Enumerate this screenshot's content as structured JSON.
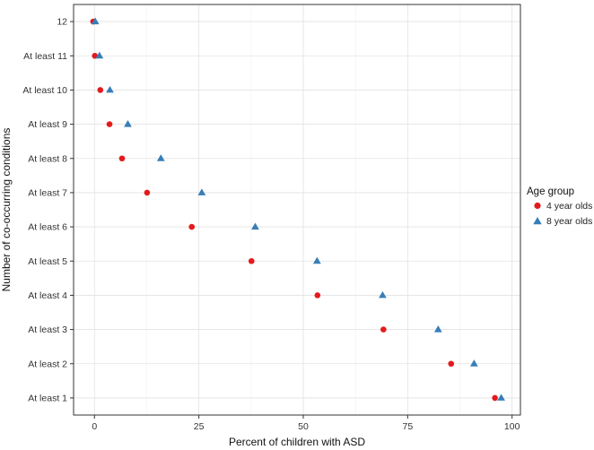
{
  "chart_data": {
    "type": "scatter",
    "xlabel": "Percent of children with ASD",
    "ylabel": "Number of co-occurring conditions",
    "categories": [
      "12",
      "At least 11",
      "At least 10",
      "At least 9",
      "At least 8",
      "At least 7",
      "At least 6",
      "At least 5",
      "At least 4",
      "At least 3",
      "At least 2",
      "At least 1"
    ],
    "xlim": [
      -5,
      102
    ],
    "xticks": [
      0,
      25,
      50,
      75,
      100
    ],
    "grid": true,
    "legend": {
      "title": "Age group",
      "position": "right"
    },
    "series": [
      {
        "name": "4 year olds",
        "marker": "circle",
        "color": "#e41a1c",
        "values": [
          -0.3,
          0.1,
          1.4,
          3.6,
          6.6,
          12.6,
          23.3,
          37.6,
          53.4,
          69.2,
          85.4,
          95.9
        ]
      },
      {
        "name": "8 year olds",
        "marker": "triangle",
        "color": "#377eb8",
        "values": [
          0.2,
          1.2,
          3.7,
          8.0,
          15.9,
          25.7,
          38.5,
          53.3,
          69.0,
          82.3,
          90.9,
          97.4
        ]
      }
    ]
  }
}
